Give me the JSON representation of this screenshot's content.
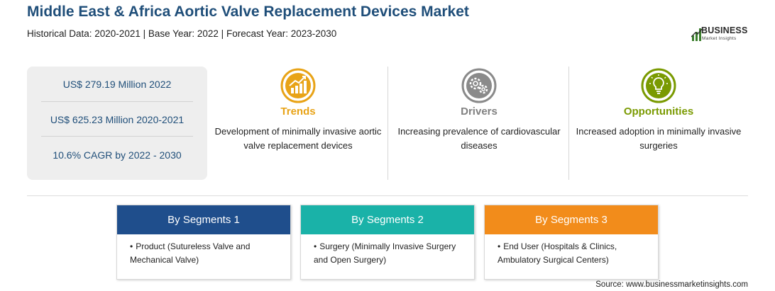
{
  "header": {
    "title": "Middle East & Africa Aortic Valve Replacement Devices Market",
    "subtitle": "Historical Data: 2020-2021 | Base Year: 2022 | Forecast Year: 2023-2030"
  },
  "logo": {
    "name": "BUSINESS",
    "tagline": "Market Insights",
    "icon": "bar-chart-logo-icon"
  },
  "stats": [
    {
      "label": "US$ 279.19 Million 2022"
    },
    {
      "label": "US$ 625.23 Million 2020-2021"
    },
    {
      "label": "10.6% CAGR by 2022 - 2030"
    }
  ],
  "columns": {
    "trends": {
      "title": "Trends",
      "text": "Development of minimally invasive aortic valve replacement devices",
      "icon": "chart-trend-icon",
      "color": "#e8a317"
    },
    "drivers": {
      "title": "Drivers",
      "text": "Increasing prevalence of cardiovascular diseases",
      "icon": "gears-icon",
      "color": "#808080"
    },
    "opportunities": {
      "title": "Opportunities",
      "text": "Increased adoption in minimally invasive surgeries",
      "icon": "lightbulb-icon",
      "color": "#7a9a01"
    }
  },
  "segments": [
    {
      "title": "By Segments 1",
      "bullet": "•",
      "text": "Product (Sutureless Valve and Mechanical Valve)",
      "color": "#1f4e8c"
    },
    {
      "title": "By Segments 2",
      "bullet": "•",
      "text": "Surgery (Minimally Invasive Surgery and Open Surgery)",
      "color": "#1ab2a8"
    },
    {
      "title": "By Segments 3",
      "bullet": "•",
      "text": "End User (Hospitals & Clinics, Ambulatory Surgical Centers)",
      "color": "#f28c1b"
    }
  ],
  "footer": {
    "source": "Source: www.businessmarketinsights.com"
  }
}
